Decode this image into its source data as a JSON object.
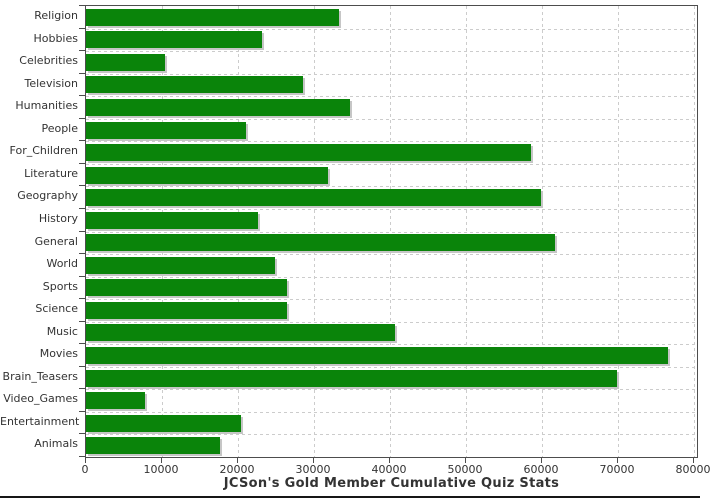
{
  "title": "JCSon's Gold Member Cumulative Quiz Stats",
  "chart_data": {
    "type": "bar",
    "orientation": "horizontal",
    "title": "JCSon's Gold Member Cumulative Quiz Stats",
    "categories": [
      "Religion",
      "Hobbies",
      "Celebrities",
      "Television",
      "Humanities",
      "People",
      "For_Children",
      "Literature",
      "Geography",
      "History",
      "General",
      "World",
      "Sports",
      "Science",
      "Music",
      "Movies",
      "Brain_Teasers",
      "Video_Games",
      "Entertainment",
      "Animals"
    ],
    "values": [
      33300,
      23200,
      10400,
      28600,
      34700,
      21100,
      58500,
      31900,
      59900,
      22600,
      61700,
      24900,
      26400,
      26500,
      40600,
      76600,
      69900,
      7700,
      20400,
      17600
    ],
    "xlim": [
      0,
      80000
    ],
    "x_ticks": [
      0,
      10000,
      20000,
      30000,
      40000,
      50000,
      60000,
      70000,
      80000
    ],
    "x_tick_labels": [
      "0",
      "10000",
      "20000",
      "30000",
      "40000",
      "50000",
      "60000",
      "70000",
      "80000"
    ],
    "grid": true,
    "legend": false,
    "colors": {
      "bar": "#0a840a",
      "bar_shadow": "#c6c6c6",
      "grid": "#cccccc",
      "axis": "#4d4d4d",
      "text": "#333333",
      "background": "#ffffff"
    }
  }
}
